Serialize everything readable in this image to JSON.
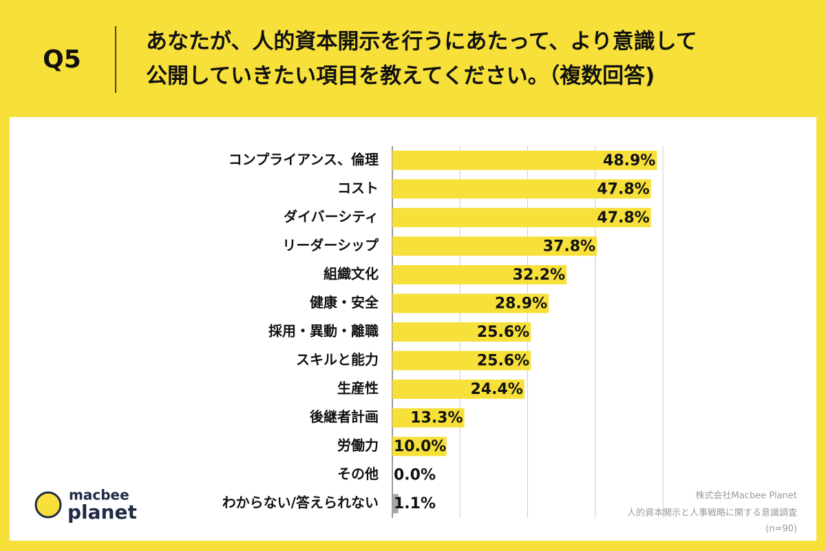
{
  "header": {
    "number": "Q5",
    "question": [
      "あなたが、人的資本開示を行うにあたって、より意識して",
      "公開していきたい項目を教えてください。（複数回答)"
    ]
  },
  "chart_data": {
    "type": "bar",
    "orientation": "horizontal",
    "categories": [
      "コンプライアンス、倫理",
      "コスト",
      "ダイバーシティ",
      "リーダーシップ",
      "組織文化",
      "健康・安全",
      "採用・異動・離職",
      "スキルと能力",
      "生産性",
      "後継者計画",
      "労働力",
      "その他",
      "わからない/答えられない"
    ],
    "values": [
      48.9,
      47.8,
      47.8,
      37.8,
      32.2,
      28.9,
      25.6,
      25.6,
      24.4,
      13.3,
      10.0,
      0.0,
      1.1
    ],
    "value_labels": [
      "48.9%",
      "47.8%",
      "47.8%",
      "37.8%",
      "32.2%",
      "28.9%",
      "25.6%",
      "25.6%",
      "24.4%",
      "13.3%",
      "10.0%",
      "0.0%",
      "1.1%"
    ],
    "colors": [
      "#f7e03a",
      "#f7e03a",
      "#f7e03a",
      "#f7e03a",
      "#f7e03a",
      "#f7e03a",
      "#f7e03a",
      "#f7e03a",
      "#f7e03a",
      "#f7e03a",
      "#f7e03a",
      "#f7e03a",
      "#a6a6a6"
    ],
    "xlim": [
      0,
      50
    ],
    "xticks": [
      0,
      12.5,
      25,
      37.5,
      50
    ],
    "grid": true
  },
  "footer": {
    "company": "株式会社Macbee Planet",
    "survey": "人的資本開示と人事戦略に関する意識調査",
    "sample": "(n=90)"
  },
  "logo": {
    "top": "macbee",
    "bottom": "planet"
  }
}
